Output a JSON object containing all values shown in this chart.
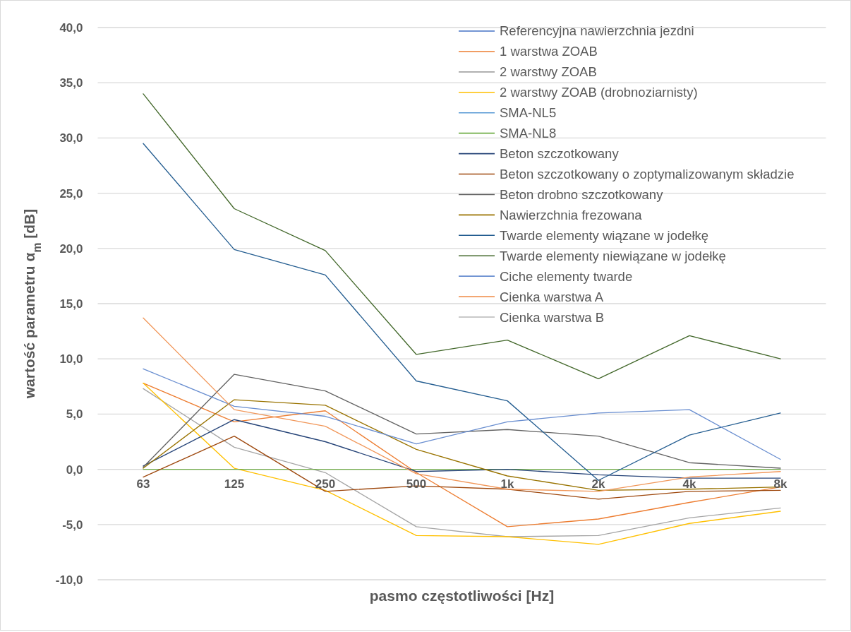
{
  "chart_data": {
    "type": "line",
    "xlabel": "pasmo częstotliwości [Hz]",
    "ylabel": "wartość parametru α$_{m}$ [dB]",
    "categories": [
      "63",
      "125",
      "250",
      "500",
      "1k",
      "2k",
      "4k",
      "8k"
    ],
    "ylim": [
      -10,
      40
    ],
    "yticks": [
      {
        "value": -10,
        "label": "-10,0"
      },
      {
        "value": -5,
        "label": "-5,0"
      },
      {
        "value": 0,
        "label": "0,0"
      },
      {
        "value": 5,
        "label": "5,0"
      },
      {
        "value": 10,
        "label": "10,0"
      },
      {
        "value": 15,
        "label": "15,0"
      },
      {
        "value": 20,
        "label": "20,0"
      },
      {
        "value": 25,
        "label": "25,0"
      },
      {
        "value": 30,
        "label": "30,0"
      },
      {
        "value": 35,
        "label": "35,0"
      },
      {
        "value": 40,
        "label": "40,0"
      }
    ],
    "grid": "y",
    "legend": "top right",
    "line_style": "solid",
    "series": [
      {
        "name": "Referencyjna nawierzchnia jezdni",
        "color": "#4472c4",
        "values": [
          null,
          null,
          null,
          null,
          null,
          null,
          null,
          null
        ]
      },
      {
        "name": "1 warstwa ZOAB",
        "color": "#ed7d31",
        "values": [
          7.8,
          4.3,
          5.3,
          -0.3,
          -5.2,
          -4.5,
          -3.0,
          -1.6
        ]
      },
      {
        "name": "2 warstwy ZOAB",
        "color": "#a5a5a5",
        "values": [
          7.3,
          2.0,
          -0.3,
          -5.2,
          -6.1,
          -6.0,
          -4.4,
          -3.5
        ]
      },
      {
        "name": "2 warstwy ZOAB (drobnoziarnisty)",
        "color": "#ffc000",
        "values": [
          7.8,
          0.1,
          -1.9,
          -6.0,
          -6.1,
          -6.8,
          -4.9,
          -3.8
        ]
      },
      {
        "name": "SMA-NL5",
        "color": "#5b9bd5",
        "values": [
          null,
          null,
          null,
          null,
          null,
          null,
          null,
          null
        ]
      },
      {
        "name": "SMA-NL8",
        "color": "#70ad47",
        "values": [
          0,
          0,
          0,
          0,
          0,
          0,
          0,
          0
        ]
      },
      {
        "name": "Beton szczotkowany",
        "color": "#264478",
        "values": [
          0.3,
          4.5,
          2.5,
          -0.2,
          0.0,
          -0.5,
          -0.8,
          -0.8
        ]
      },
      {
        "name": "Beton szczotkowany o zoptymalizowanym składzie",
        "color": "#9e480e",
        "values": [
          -0.7,
          3.0,
          -2.0,
          -1.5,
          -1.8,
          -2.7,
          -2.0,
          -1.9
        ]
      },
      {
        "name": "Beton drobno szczotkowany",
        "color": "#636363",
        "values": [
          0.2,
          8.6,
          7.1,
          3.2,
          3.6,
          3.0,
          0.6,
          0.1
        ]
      },
      {
        "name": "Nawierzchnia frezowana",
        "color": "#997300",
        "values": [
          0.1,
          6.3,
          5.8,
          1.8,
          -0.6,
          -1.9,
          -1.8,
          -1.6
        ]
      },
      {
        "name": "Twarde elementy wiązane w jodełkę",
        "color": "#255e91",
        "values": [
          29.5,
          19.9,
          17.6,
          8.0,
          6.2,
          -1.0,
          3.1,
          5.1
        ]
      },
      {
        "name": "Twarde elementy niewiązane w jodełkę",
        "color": "#43682b",
        "values": [
          34.0,
          23.6,
          19.8,
          10.4,
          11.7,
          8.2,
          12.1,
          10.0
        ]
      },
      {
        "name": "Ciche elementy twarde",
        "color": "#698ed0",
        "values": [
          9.1,
          5.7,
          4.8,
          2.3,
          4.3,
          5.1,
          5.4,
          0.9
        ]
      },
      {
        "name": "Cienka warstwa A",
        "color": "#f1975a",
        "values": [
          13.7,
          5.4,
          3.9,
          -0.4,
          -1.8,
          -2.0,
          -0.7,
          -0.2
        ]
      },
      {
        "name": "Cienka warstwa B",
        "color": "#b7b7b7",
        "values": [
          null,
          null,
          null,
          null,
          null,
          null,
          null,
          null
        ]
      }
    ]
  }
}
